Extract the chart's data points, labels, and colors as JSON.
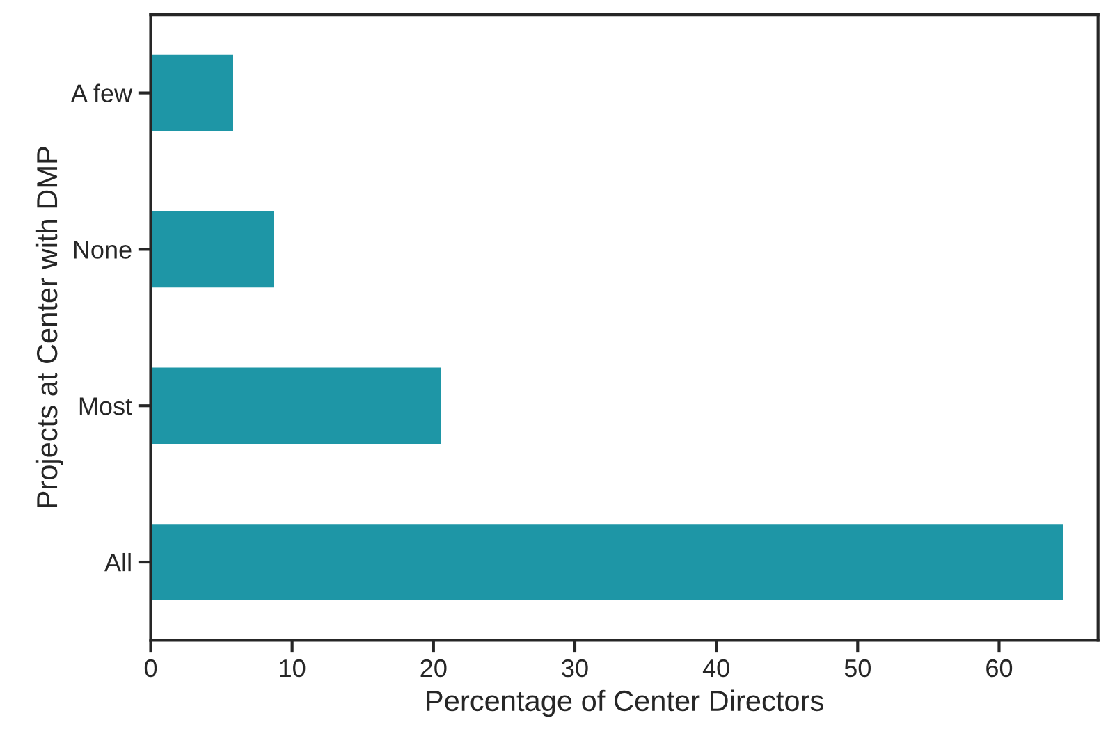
{
  "chart_data": {
    "type": "bar",
    "orientation": "horizontal",
    "xlabel": "Percentage of Center Directors",
    "ylabel": "Projects at Center with DMP",
    "categories": [
      "A few",
      "None",
      "Most",
      "All"
    ],
    "values": [
      5.9,
      8.8,
      20.6,
      64.6
    ],
    "color": "#1e96a6",
    "xlim": [
      0,
      67
    ],
    "xticks": [
      0,
      10,
      20,
      30,
      40,
      50,
      60
    ],
    "grid": false,
    "legend": false
  }
}
